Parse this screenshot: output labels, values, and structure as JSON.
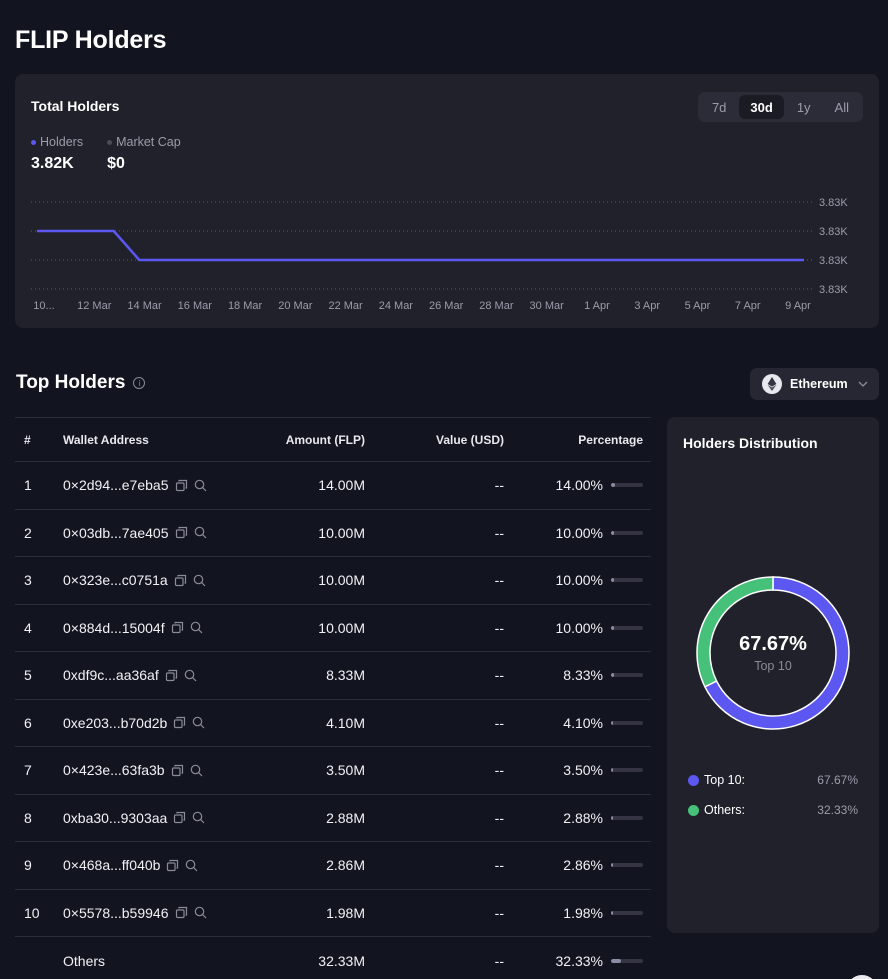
{
  "page": {
    "title": "FLIP Holders"
  },
  "total_holders": {
    "title": "Total Holders",
    "ranges": [
      {
        "label": "7d",
        "active": false
      },
      {
        "label": "30d",
        "active": true
      },
      {
        "label": "1y",
        "active": false
      },
      {
        "label": "All",
        "active": false
      }
    ],
    "legend": [
      {
        "label": "Holders",
        "value": "3.82K",
        "color": "#5b57f0"
      },
      {
        "label": "Market Cap",
        "value": "$0",
        "color": "#4a4a58"
      }
    ]
  },
  "chart_data": {
    "type": "line",
    "title": "Total Holders",
    "series": [
      {
        "name": "Holders",
        "color": "#5b57f0",
        "values": [
          3831,
          3831,
          3831,
          3831,
          3830,
          3830,
          3830,
          3830,
          3830,
          3830,
          3830,
          3830,
          3830,
          3830,
          3830,
          3830,
          3830,
          3830,
          3830,
          3830,
          3830,
          3830,
          3830,
          3830,
          3830,
          3830,
          3830,
          3830,
          3830,
          3830,
          3830
        ]
      }
    ],
    "x": [
      "10 Mar",
      "11 Mar",
      "12 Mar",
      "13 Mar",
      "14 Mar",
      "15 Mar",
      "16 Mar",
      "17 Mar",
      "18 Mar",
      "19 Mar",
      "20 Mar",
      "21 Mar",
      "22 Mar",
      "23 Mar",
      "24 Mar",
      "25 Mar",
      "26 Mar",
      "27 Mar",
      "28 Mar",
      "29 Mar",
      "30 Mar",
      "31 Mar",
      "1 Apr",
      "2 Apr",
      "3 Apr",
      "4 Apr",
      "5 Apr",
      "6 Apr",
      "7 Apr",
      "8 Apr",
      "9 Apr"
    ],
    "x_tick_labels": [
      "10...",
      "12 Mar",
      "14 Mar",
      "16 Mar",
      "18 Mar",
      "20 Mar",
      "22 Mar",
      "24 Mar",
      "26 Mar",
      "28 Mar",
      "30 Mar",
      "1 Apr",
      "3 Apr",
      "5 Apr",
      "7 Apr",
      "9 Apr"
    ],
    "y_tick_labels": [
      "3.83K",
      "3.83K",
      "3.83K",
      "3.83K"
    ],
    "y_ticks": [
      3832,
      3831,
      3830,
      3829
    ],
    "ylim": [
      3829,
      3832
    ],
    "ylabel_position": "right",
    "grid": true,
    "xlabel": "",
    "ylabel": ""
  },
  "top_holders": {
    "title": "Top Holders",
    "chain": "Ethereum",
    "columns": [
      "#",
      "Wallet Address",
      "Amount (FLP)",
      "Value (USD)",
      "Percentage"
    ],
    "rows": [
      {
        "rank": "1",
        "address": "0×2d94...e7eba5",
        "amount": "14.00M",
        "value": "--",
        "pct": "14.00%",
        "pct_value": 14.0
      },
      {
        "rank": "2",
        "address": "0×03db...7ae405",
        "amount": "10.00M",
        "value": "--",
        "pct": "10.00%",
        "pct_value": 10.0
      },
      {
        "rank": "3",
        "address": "0×323e...c0751a",
        "amount": "10.00M",
        "value": "--",
        "pct": "10.00%",
        "pct_value": 10.0
      },
      {
        "rank": "4",
        "address": "0×884d...15004f",
        "amount": "10.00M",
        "value": "--",
        "pct": "10.00%",
        "pct_value": 10.0
      },
      {
        "rank": "5",
        "address": "0xdf9c...aa36af",
        "amount": "8.33M",
        "value": "--",
        "pct": "8.33%",
        "pct_value": 8.33
      },
      {
        "rank": "6",
        "address": "0xe203...b70d2b",
        "amount": "4.10M",
        "value": "--",
        "pct": "4.10%",
        "pct_value": 4.1
      },
      {
        "rank": "7",
        "address": "0×423e...63fa3b",
        "amount": "3.50M",
        "value": "--",
        "pct": "3.50%",
        "pct_value": 3.5
      },
      {
        "rank": "8",
        "address": "0xba30...9303aa",
        "amount": "2.88M",
        "value": "--",
        "pct": "2.88%",
        "pct_value": 2.88
      },
      {
        "rank": "9",
        "address": "0×468a...ff040b",
        "amount": "2.86M",
        "value": "--",
        "pct": "2.86%",
        "pct_value": 2.86
      },
      {
        "rank": "10",
        "address": "0×5578...b59946",
        "amount": "1.98M",
        "value": "--",
        "pct": "1.98%",
        "pct_value": 1.98
      }
    ],
    "others": {
      "label": "Others",
      "amount": "32.33M",
      "value": "--",
      "pct": "32.33%",
      "pct_value": 32.33
    }
  },
  "distribution": {
    "title": "Holders Distribution",
    "center_value": "67.67%",
    "center_label": "Top 10",
    "slices": [
      {
        "label": "Top 10:",
        "value": "67.67%",
        "fraction": 67.67,
        "color": "#5b57f0"
      },
      {
        "label": "Others:",
        "value": "32.33%",
        "fraction": 32.33,
        "color": "#45c17a"
      }
    ]
  }
}
